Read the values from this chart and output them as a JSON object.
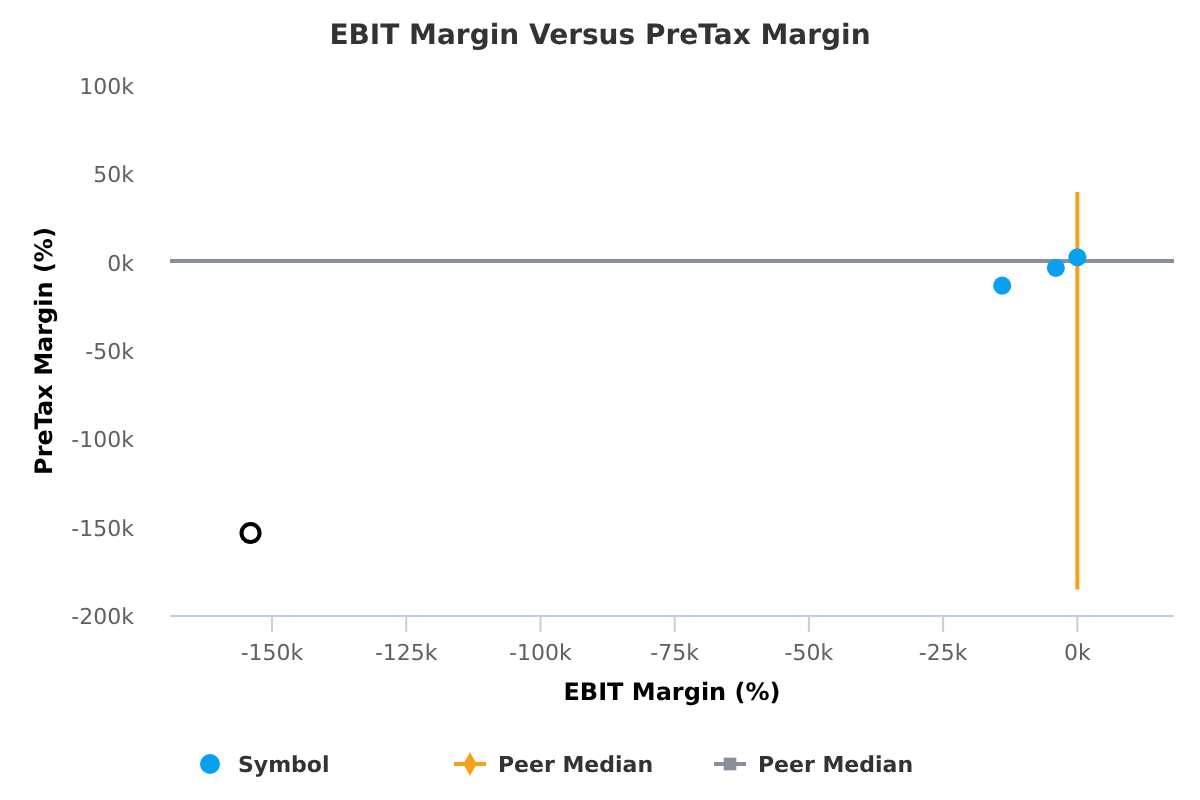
{
  "chart_data": {
    "type": "scatter",
    "title": "EBIT Margin Versus PreTax Margin",
    "xlabel": "EBIT Margin (%)",
    "ylabel": "PreTax Margin (%)",
    "xlim": [
      -169000,
      18000
    ],
    "ylim": [
      -200000,
      100000
    ],
    "xticks": [
      {
        "value": -150000,
        "label": "-150k"
      },
      {
        "value": -125000,
        "label": "-125k"
      },
      {
        "value": -100000,
        "label": "-100k"
      },
      {
        "value": -75000,
        "label": "-75k"
      },
      {
        "value": -50000,
        "label": "-50k"
      },
      {
        "value": -25000,
        "label": "-25k"
      },
      {
        "value": 0,
        "label": "0k"
      }
    ],
    "yticks": [
      {
        "value": -200000,
        "label": "-200k"
      },
      {
        "value": -150000,
        "label": "-150k"
      },
      {
        "value": -100000,
        "label": "-100k"
      },
      {
        "value": -50000,
        "label": "-50k"
      },
      {
        "value": 0,
        "label": "0k"
      },
      {
        "value": 50000,
        "label": "50k"
      },
      {
        "value": 100000,
        "label": "100k"
      }
    ],
    "grid": false,
    "legend": "bottom",
    "series": [
      {
        "name": "Symbol",
        "marker": "circle",
        "color": "#0aa0f0",
        "x": [
          -14000,
          -4000,
          0
        ],
        "values": [
          -13000,
          -3000,
          3000
        ]
      },
      {
        "marker": "circle",
        "color": "#000000",
        "x": [
          -154000
        ],
        "values": [
          -153000
        ]
      },
      {
        "name": "Peer Median",
        "type": "line",
        "color": "#f7a11a",
        "x": [
          0,
          0
        ],
        "values": [
          40000,
          -185000
        ]
      },
      {
        "name": "Peer Median",
        "type": "line",
        "color": "#8a8f9c",
        "x": [
          -169000,
          18000
        ],
        "values": [
          1000,
          1000
        ]
      }
    ]
  }
}
